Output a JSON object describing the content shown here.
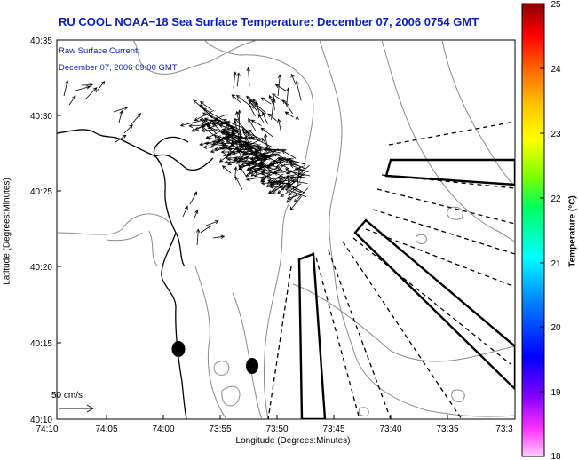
{
  "title": "RU COOL  NOAA−18  Sea Surface Temperature:  December 07, 2006 0754 GMT",
  "legend": {
    "line1": "Raw Surface Current:",
    "line2": "December 07, 2006 09:00 GMT",
    "scale_label": "50 cm/s"
  },
  "axes": {
    "xlabel": "Longitude (Degrees:Minutes)",
    "ylabel": "Latitude (Degrees:Minutes)",
    "xticks": [
      "74:10",
      "74:05",
      "74:00",
      "73:55",
      "73:50",
      "73:45",
      "73:40",
      "73:35",
      "73:3"
    ],
    "yticks": [
      "40:35",
      "40:30",
      "40:25",
      "40:20",
      "40:15",
      "40:10"
    ]
  },
  "colorbar": {
    "title": "Temperature (°C)",
    "ticks": [
      "25",
      "24",
      "23",
      "22",
      "21",
      "20",
      "19",
      "18"
    ],
    "colors": [
      "#8b0000",
      "#ff0000",
      "#ff8c00",
      "#ffff00",
      "#00ff00",
      "#00ffff",
      "#0000ff",
      "#ff00ff"
    ]
  }
}
